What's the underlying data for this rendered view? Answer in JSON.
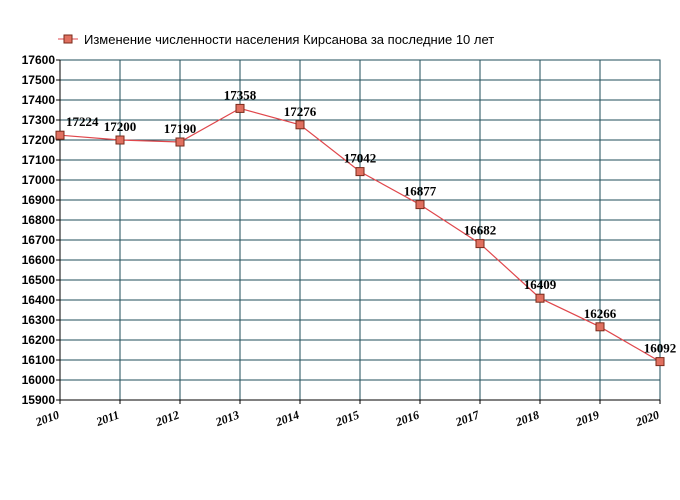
{
  "chart_data": {
    "type": "line",
    "title": "Изменение численности населения Кирсанова за последние 10 лет",
    "legend_entry": "Изменение численности населения Кирсанова за последние 10 лет",
    "legend_position": "top-left",
    "x": [
      "2010",
      "2011",
      "2012",
      "2013",
      "2014",
      "2015",
      "2016",
      "2017",
      "2018",
      "2019",
      "2020"
    ],
    "series": [
      {
        "name": "Изменение численности населения Кирсанова за последние 10 лет",
        "values": [
          17224,
          17200,
          17190,
          17358,
          17276,
          17042,
          16877,
          16682,
          16409,
          16266,
          16092
        ],
        "labels": [
          "17224",
          "17200",
          "17190",
          "17358",
          "17276",
          "17042",
          "16877",
          "16682",
          "16409",
          "16266",
          "16092"
        ]
      }
    ],
    "ylim": [
      15900,
      17600
    ],
    "yticks": [
      "15900",
      "16000",
      "16100",
      "16200",
      "16300",
      "16400",
      "16500",
      "16600",
      "16700",
      "16800",
      "16900",
      "17000",
      "17100",
      "17200",
      "17300",
      "17400",
      "17500",
      "17600"
    ],
    "grid": true,
    "colors": {
      "line": "#e0474c",
      "marker_fill": "#e07060",
      "marker_stroke": "#7a2a1a",
      "grid": "#1f4e5a",
      "axis": "#000000"
    }
  }
}
